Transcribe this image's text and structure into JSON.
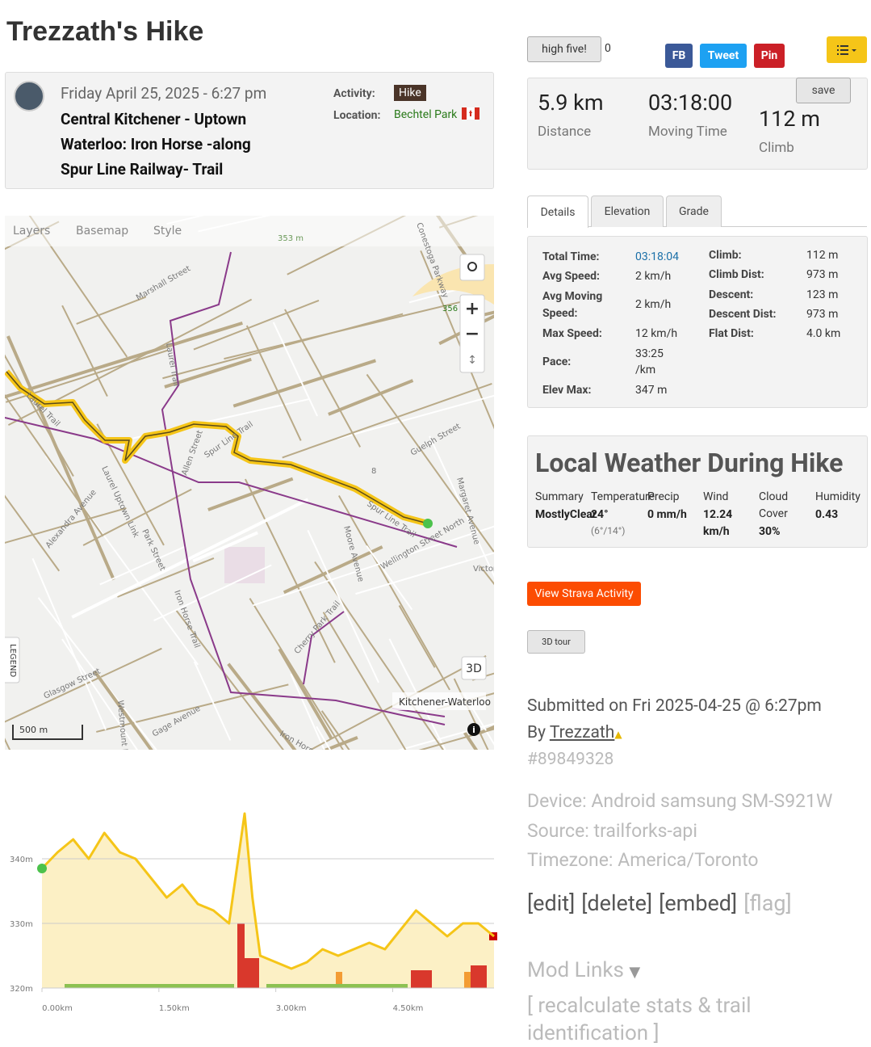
{
  "header": {
    "title": "Trezzath's Hike"
  },
  "summary": {
    "date": "Friday April 25, 2025 - 6:27 pm",
    "name": "Central Kitchener - Uptown Waterloo: Iron Horse -along Spur Line Railway- Trail",
    "activity_label": "Activity:",
    "activity": "Hike",
    "location_label": "Location:",
    "location": "Bechtel Park"
  },
  "social": {
    "high_five": "high five!",
    "count": "0",
    "fb": "FB",
    "tweet": "Tweet",
    "pin": "Pin"
  },
  "stats": {
    "save": "save",
    "items": [
      {
        "value": "5.9 km",
        "label": "Distance"
      },
      {
        "value": "03:18:00",
        "label": "Moving Time"
      },
      {
        "value": "112 m",
        "label": "Climb"
      }
    ]
  },
  "tabs": [
    "Details",
    "Elevation",
    "Grade"
  ],
  "details": {
    "left": [
      [
        "Total Time:",
        "03:18:04"
      ],
      [
        "Avg Speed:",
        "2 km/h"
      ],
      [
        "Avg Moving Speed:",
        "2 km/h"
      ],
      [
        "Max Speed:",
        "12 km/h"
      ],
      [
        "Pace:",
        "33:25 /km"
      ],
      [
        "Elev Max:",
        "347 m"
      ]
    ],
    "right": [
      [
        "Climb:",
        "112 m"
      ],
      [
        "Climb Dist:",
        "973 m"
      ],
      [
        "Descent:",
        "123 m"
      ],
      [
        "Descent Dist:",
        "973 m"
      ],
      [
        "Flat Dist:",
        "4.0 km"
      ]
    ]
  },
  "weather": {
    "title": "Local Weather During Hike",
    "columns": [
      {
        "label": "Summary",
        "value": "MostlyClear"
      },
      {
        "label": "Temperature",
        "value": "24°",
        "note": "(6°/14°)"
      },
      {
        "label": "Precip",
        "value": "0 mm/h"
      },
      {
        "label": "Wind",
        "value": "12.24 km/h"
      },
      {
        "label": "Cloud Cover",
        "value": "30%"
      },
      {
        "label": "Humidity",
        "value": "0.43"
      }
    ]
  },
  "buttons": {
    "strava": "View Strava Activity",
    "tour": "3D tour"
  },
  "submitted": {
    "line": "Submitted on Fri 2025-04-25 @ 6:27pm",
    "by": "By",
    "user": "Trezzath",
    "id": "#89849328"
  },
  "meta": [
    "Device: Android samsung SM-S921W",
    "Source: trailforks-api",
    "Timezone: America/Toronto"
  ],
  "actions": [
    "[edit]",
    "[delete]",
    "[embed]",
    "[flag]"
  ],
  "mod": {
    "title": "Mod Links",
    "recalc": "[ recalculate stats & trail identification ]"
  },
  "map": {
    "controls": [
      "Layers",
      "Basemap",
      "Style"
    ],
    "three_d": "3D",
    "legend": "LEGEND",
    "scale": "500 m",
    "labels": [
      "353 m",
      "356",
      "Marshall Street",
      "Laurel Trail",
      "Laurel Trail",
      "Spur Line Trail",
      "Allen Street",
      "Guelph Street",
      "Margaret Avenue",
      "Spur Line Trail",
      "Moore Avenue",
      "Wellington Street North",
      "Park Street",
      "Alexandra Avenue",
      "Laurel Uptown Link",
      "Iron Horse Trail",
      "Cherry Park Trail",
      "Glasgow Street",
      "Westmount Road",
      "Gage Avenue",
      "Kitchener-Waterloo",
      "Iron Horse",
      "8",
      "Victoria",
      "Conestoga Parkway"
    ]
  },
  "chart_data": {
    "type": "area",
    "color": "#f5c518",
    "x": [
      0,
      0.2,
      0.4,
      0.6,
      0.8,
      1.0,
      1.2,
      1.4,
      1.6,
      1.8,
      2.0,
      2.2,
      2.4,
      2.6,
      2.7,
      2.8,
      3.0,
      3.2,
      3.4,
      3.6,
      3.8,
      4.0,
      4.2,
      4.4,
      4.6,
      4.8,
      5.0,
      5.2,
      5.4,
      5.6,
      5.8
    ],
    "values": [
      338.5,
      341,
      343,
      340,
      344,
      341,
      340,
      337,
      334,
      336,
      333,
      332,
      330,
      347,
      334,
      325,
      324,
      323,
      324,
      326,
      325,
      326,
      327,
      326,
      329,
      332,
      330,
      328,
      330,
      330,
      328
    ],
    "xlim": [
      0,
      5.8
    ],
    "ylim": [
      320,
      348
    ],
    "xticks": [
      {
        "value": 0,
        "label": "0.00km"
      },
      {
        "value": 1.5,
        "label": "1.50km"
      },
      {
        "value": 3,
        "label": "3.00km"
      },
      {
        "value": 4.5,
        "label": "4.50km"
      }
    ],
    "yticks": [
      {
        "value": 320,
        "label": "320m"
      },
      {
        "value": 330,
        "label": "330m"
      },
      {
        "value": 340,
        "label": "340m"
      }
    ],
    "grid": true
  }
}
